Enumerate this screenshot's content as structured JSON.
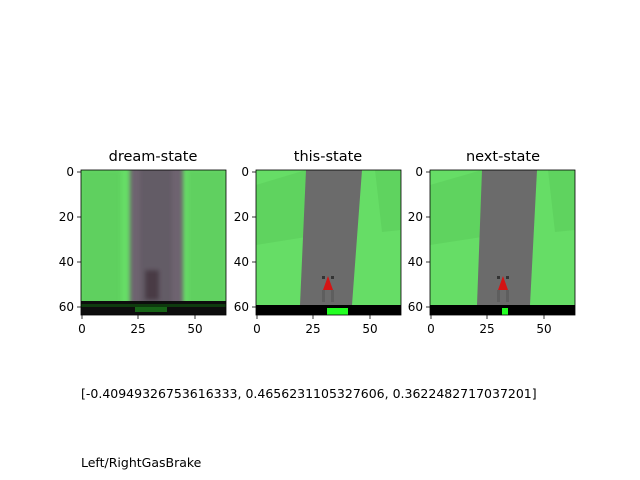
{
  "panels": [
    {
      "id": "dream",
      "title": "dream-state"
    },
    {
      "id": "this",
      "title": "this-state"
    },
    {
      "id": "next",
      "title": "next-state"
    }
  ],
  "axes": {
    "x_ticks": [
      "0",
      "25",
      "50"
    ],
    "y_ticks": [
      "0",
      "20",
      "40",
      "60"
    ]
  },
  "action_values": "[-0.40949326753616333, 0.4656231105327606, 0.3622482717037201]",
  "controls_label": "Left/Right\u0007Gas\u0007Brake",
  "colors": {
    "grass": "#66dd66",
    "grass_dark": "#5ccf5c",
    "road": "#6b6b6b",
    "car": "#d41414",
    "bar": "#000000",
    "indicator": "#22ff22"
  }
}
